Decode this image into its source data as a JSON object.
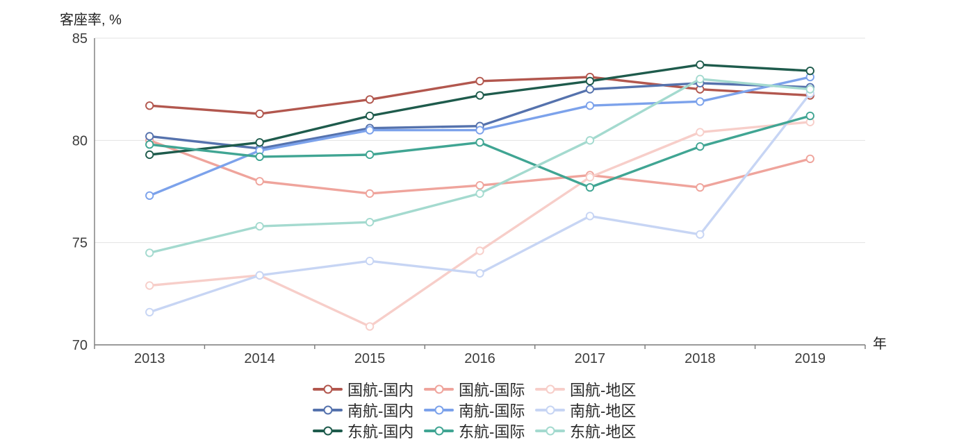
{
  "chart_data": {
    "type": "line",
    "ylabel": "客座率, %",
    "xlabel": "年",
    "x": [
      2013,
      2014,
      2015,
      2016,
      2017,
      2018,
      2019
    ],
    "ylim": [
      70,
      85
    ],
    "yticks": [
      70,
      75,
      80,
      85
    ],
    "grid": true,
    "legend_position": "bottom",
    "legend_rows": 3,
    "marker": "hollow-circle",
    "colors": {
      "axis_line": "#7a7a7a",
      "grid_line": "#e3e3e3",
      "tick_label": "#3d3d3d"
    },
    "series": [
      {
        "name": "国航-国内",
        "color": "#b2574e",
        "values": [
          81.7,
          81.3,
          82.0,
          82.9,
          83.1,
          82.5,
          82.2
        ]
      },
      {
        "name": "国航-国际",
        "color": "#efa49c",
        "values": [
          80.0,
          78.0,
          77.4,
          77.8,
          78.3,
          77.7,
          79.1
        ]
      },
      {
        "name": "国航-地区",
        "color": "#f7cec9",
        "values": [
          72.9,
          73.4,
          70.9,
          74.6,
          78.2,
          80.4,
          80.9
        ]
      },
      {
        "name": "南航-国内",
        "color": "#5572ad",
        "values": [
          80.2,
          79.6,
          80.6,
          80.7,
          82.5,
          82.8,
          82.6
        ]
      },
      {
        "name": "南航-国际",
        "color": "#7ca2eb",
        "values": [
          77.3,
          79.5,
          80.5,
          80.5,
          81.7,
          81.9,
          83.1
        ]
      },
      {
        "name": "南航-地区",
        "color": "#c7d5f4",
        "values": [
          71.6,
          73.4,
          74.1,
          73.5,
          76.3,
          75.4,
          82.3
        ]
      },
      {
        "name": "东航-国内",
        "color": "#1e5b4c",
        "values": [
          79.3,
          79.9,
          81.2,
          82.2,
          82.9,
          83.7,
          83.4
        ]
      },
      {
        "name": "东航-国际",
        "color": "#40a593",
        "values": [
          79.8,
          79.2,
          79.3,
          79.9,
          77.7,
          79.7,
          81.2
        ]
      },
      {
        "name": "东航-地区",
        "color": "#a4dacf",
        "values": [
          74.5,
          75.8,
          76.0,
          77.4,
          80.0,
          83.0,
          82.5
        ]
      }
    ]
  }
}
